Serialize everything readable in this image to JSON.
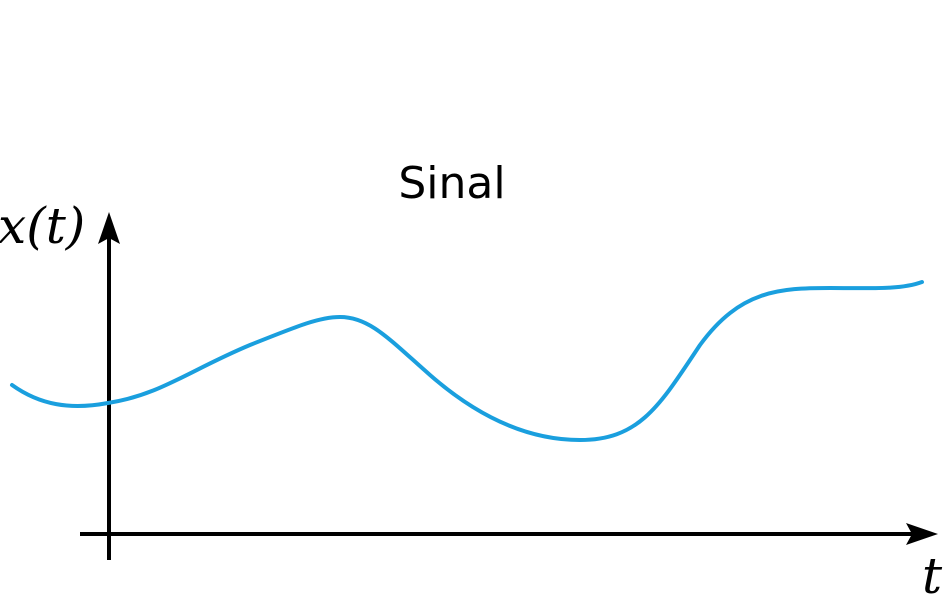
{
  "title": "Sinal",
  "y_axis_label": "x(t)",
  "x_axis_label": "t",
  "colors": {
    "signal": "#1a9fde",
    "axes": "#000000",
    "background": "#ffffff"
  }
}
